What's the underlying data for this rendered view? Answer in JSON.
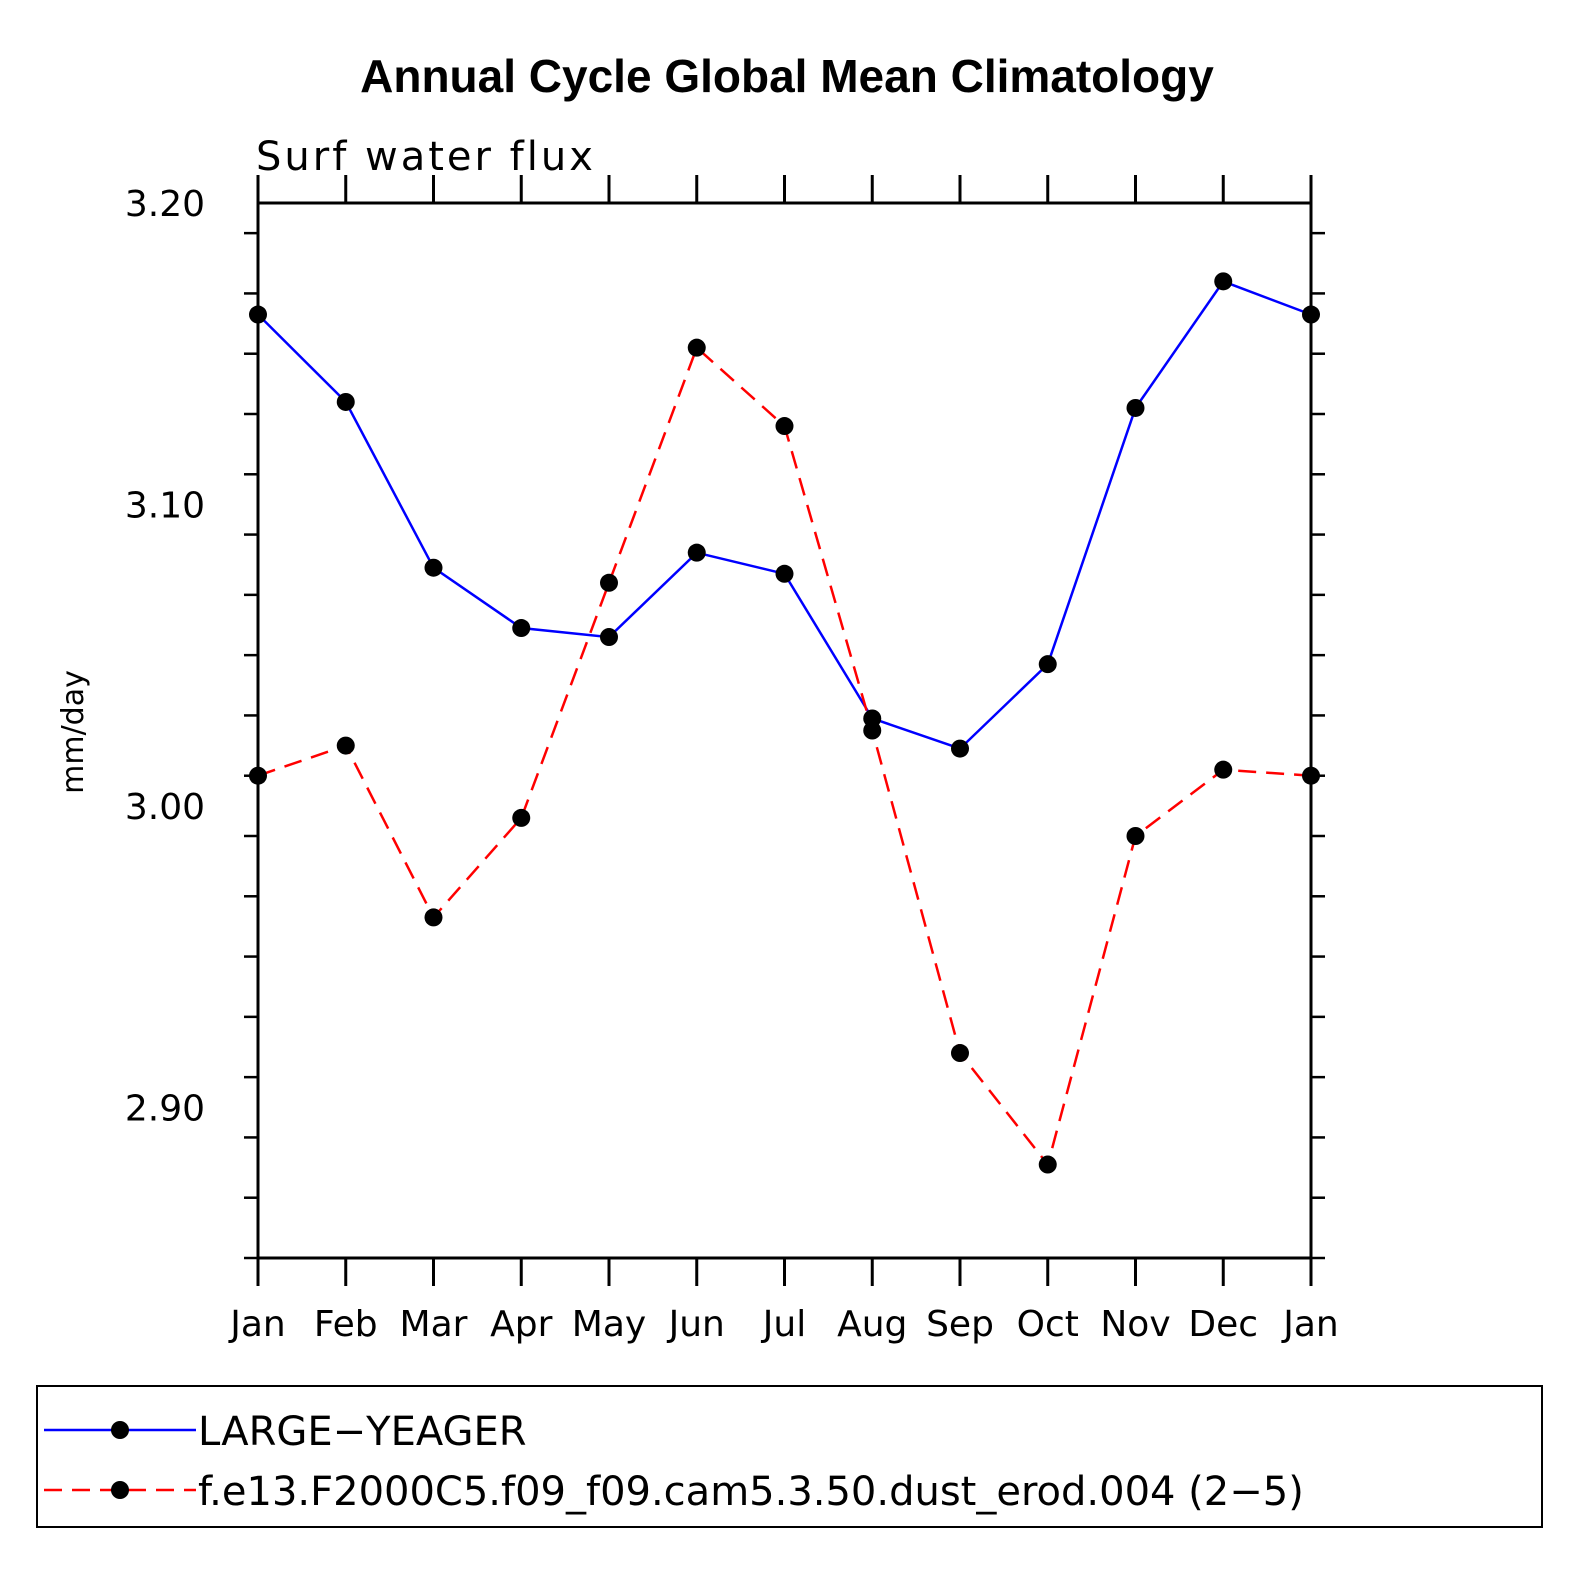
{
  "chart_data": {
    "type": "line",
    "title": "Annual Cycle Global Mean Climatology",
    "subtitle": "Surf water flux",
    "xlabel": "",
    "ylabel": "mm/day",
    "ylim": [
      2.85,
      3.2
    ],
    "yticks": [
      "3.20",
      "3.10",
      "3.00",
      "2.90"
    ],
    "ytick_values": [
      3.2,
      3.1,
      3.0,
      2.9
    ],
    "categories": [
      "Jan",
      "Feb",
      "Mar",
      "Apr",
      "May",
      "Jun",
      "Jul",
      "Aug",
      "Sep",
      "Oct",
      "Nov",
      "Dec",
      "Jan"
    ],
    "series": [
      {
        "name": "LARGE−YEAGER",
        "color": "#0000ff",
        "dashed": false,
        "values": [
          3.163,
          3.134,
          3.079,
          3.059,
          3.056,
          3.084,
          3.077,
          3.029,
          3.019,
          3.047,
          3.132,
          3.174,
          3.163
        ]
      },
      {
        "name": "f.e13.F2000C5.f09_f09.cam5.3.50.dust_erod.004 (2−5)",
        "color": "#ff0000",
        "dashed": true,
        "values": [
          3.01,
          3.02,
          2.963,
          2.996,
          3.074,
          3.152,
          3.126,
          3.025,
          2.918,
          2.881,
          2.99,
          3.012,
          3.01
        ]
      }
    ],
    "legend_position": "bottom"
  }
}
